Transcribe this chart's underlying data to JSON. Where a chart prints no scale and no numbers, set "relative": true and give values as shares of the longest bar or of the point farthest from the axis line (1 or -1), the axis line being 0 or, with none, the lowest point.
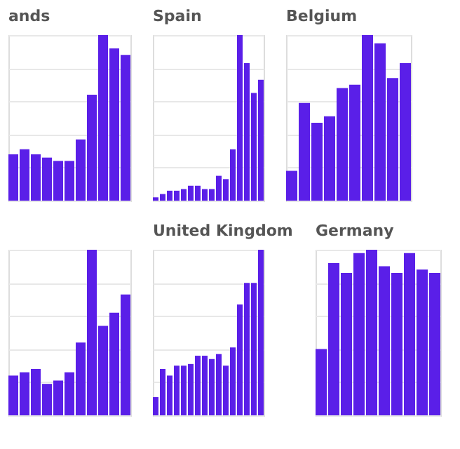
{
  "chart_data": [
    {
      "type": "bar",
      "title": "ands",
      "relative": true,
      "grid": true,
      "color": "#5a1fe8",
      "categories": [
        null,
        null,
        null,
        null,
        null,
        null,
        null,
        null,
        null,
        null,
        null
      ],
      "values": [
        0.28,
        0.31,
        0.28,
        0.26,
        0.24,
        0.24,
        0.37,
        0.64,
        1,
        0.92,
        0.88
      ]
    },
    {
      "type": "bar",
      "title": "Spain",
      "relative": true,
      "grid": true,
      "color": "#5a1fe8",
      "categories": [
        null,
        null,
        null,
        null,
        null,
        null,
        null,
        null,
        null,
        null,
        null,
        null,
        null,
        null,
        null,
        null
      ],
      "values": [
        0.02,
        0.04,
        0.06,
        0.06,
        0.07,
        0.09,
        0.09,
        0.07,
        0.07,
        0.15,
        0.13,
        0.31,
        1,
        0.83,
        0.65,
        0.73
      ]
    },
    {
      "type": "bar",
      "title": "Belgium",
      "relative": true,
      "grid": true,
      "color": "#5a1fe8",
      "categories": [
        null,
        null,
        null,
        null,
        null,
        null,
        null,
        null,
        null,
        null
      ],
      "values": [
        0.18,
        0.59,
        0.47,
        0.51,
        0.68,
        0.7,
        1,
        0.95,
        0.74,
        0.83
      ]
    },
    {
      "type": "bar",
      "relative": true,
      "grid": true,
      "color": "#5a1fe8",
      "categories": [
        null,
        null,
        null,
        null,
        null,
        null,
        null,
        null,
        null,
        null,
        null
      ],
      "values": [
        0.24,
        0.26,
        0.28,
        0.19,
        0.21,
        0.26,
        0.44,
        1,
        0.54,
        0.62,
        0.73
      ]
    },
    {
      "type": "bar",
      "title": "United Kingdom",
      "relative": true,
      "grid": true,
      "color": "#5a1fe8",
      "categories": [
        null,
        null,
        null,
        null,
        null,
        null,
        null,
        null,
        null,
        null,
        null,
        null,
        null,
        null,
        null,
        null
      ],
      "values": [
        0.11,
        0.28,
        0.24,
        0.3,
        0.3,
        0.31,
        0.36,
        0.36,
        0.34,
        0.37,
        0.3,
        0.41,
        0.67,
        0.8,
        0.8,
        1
      ]
    },
    {
      "type": "bar",
      "title": "Germany",
      "relative": true,
      "grid": true,
      "color": "#5a1fe8",
      "categories": [
        null,
        null,
        null,
        null,
        null,
        null,
        null,
        null,
        null,
        null
      ],
      "values": [
        0.4,
        0.92,
        0.86,
        0.98,
        1,
        0.9,
        0.86,
        0.98,
        0.88,
        0.86
      ]
    }
  ]
}
